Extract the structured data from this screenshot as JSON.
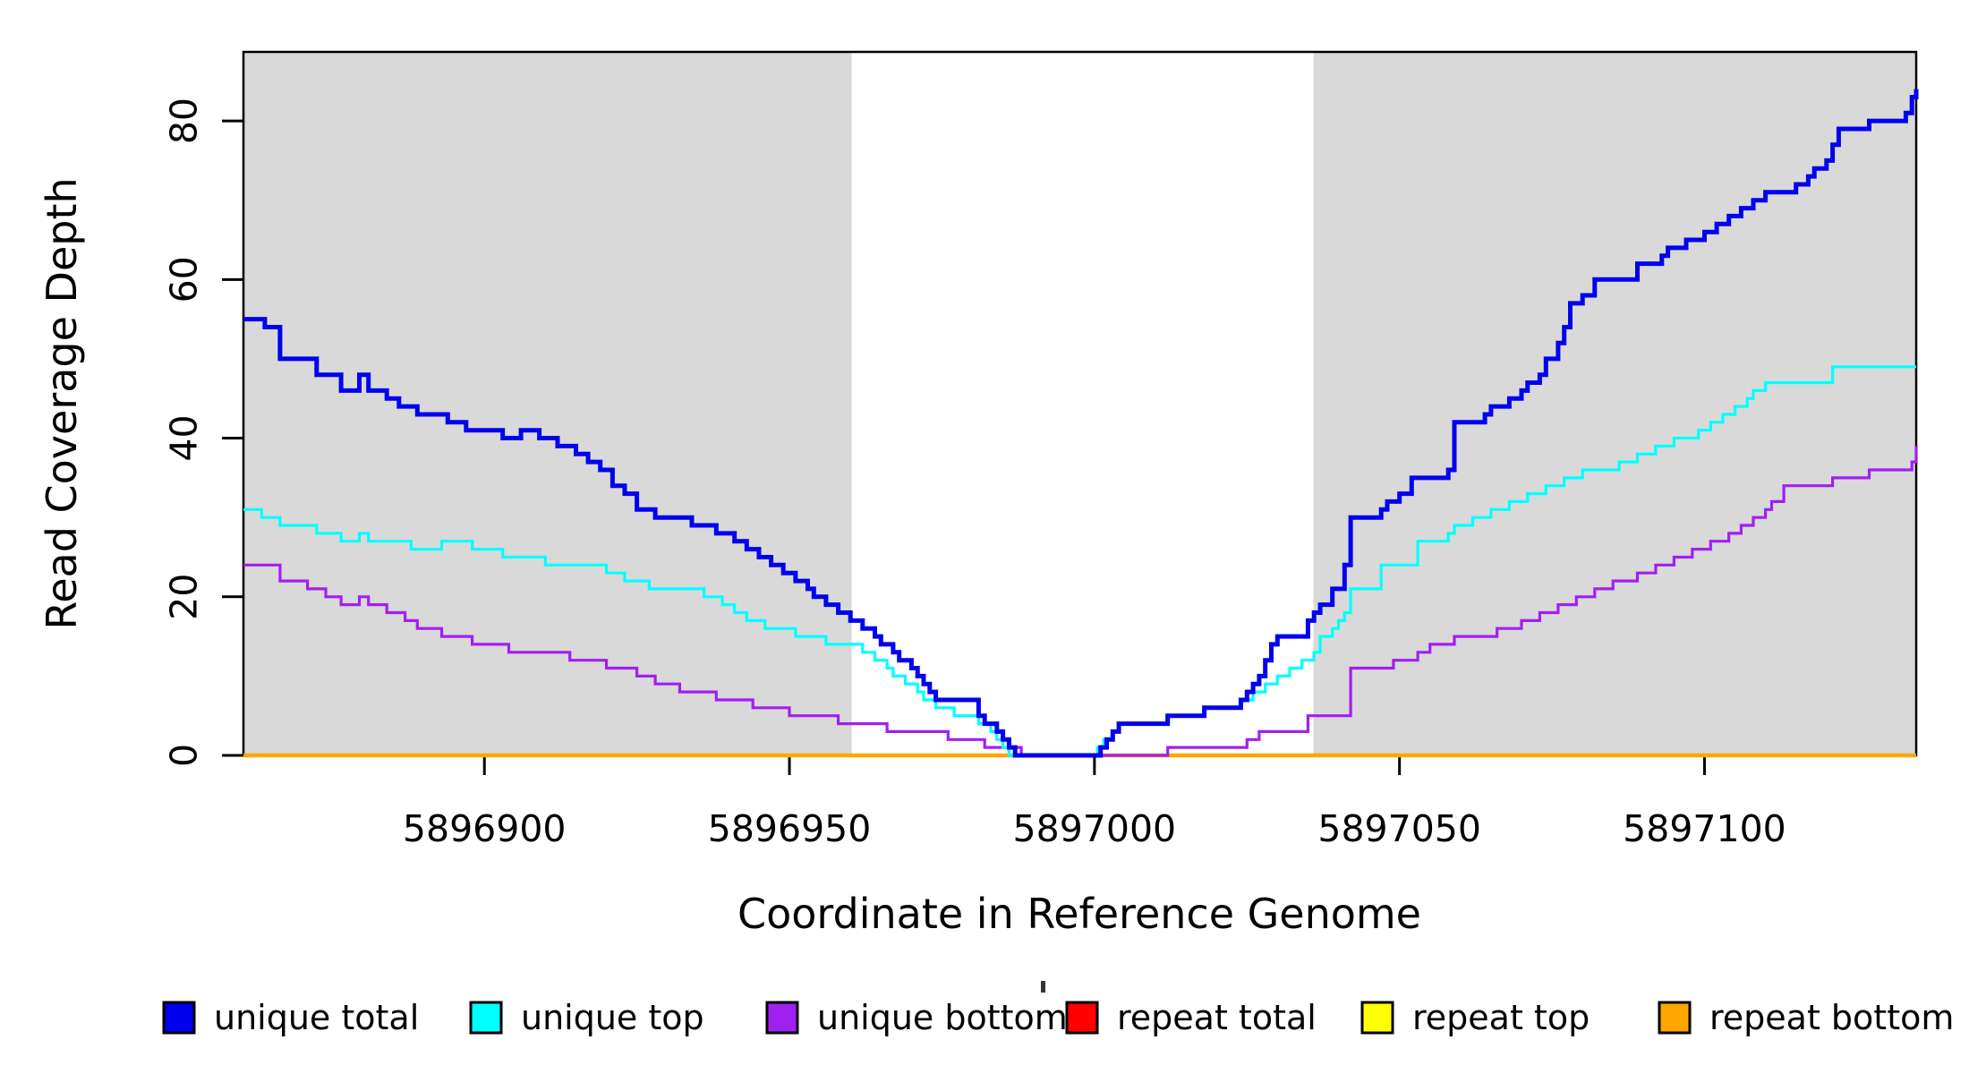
{
  "chart_data": {
    "type": "line",
    "subtype": "step-coverage-plot",
    "title": "",
    "xlabel": "Coordinate in Reference Genome",
    "ylabel": "Read Coverage Depth",
    "grid": false,
    "xlim": [
      5896860.5,
      5897134.7
    ],
    "ylim": [
      0,
      88.7
    ],
    "x_ticks": [
      5896900,
      5896950,
      5897000,
      5897050,
      5897100
    ],
    "x_tick_labels": [
      "5896900",
      "5896950",
      "5897000",
      "5897050",
      "5897100"
    ],
    "y_ticks": [
      0,
      20,
      40,
      60,
      80
    ],
    "y_tick_labels": [
      "0",
      "20",
      "40",
      "60",
      "80"
    ],
    "shading": {
      "color": "#D9D9D9",
      "regions": [
        [
          5896860.5,
          5896960.2
        ],
        [
          5897035.9,
          5897134.7
        ]
      ]
    },
    "legend_position": "bottom",
    "series": [
      {
        "name": "repeat total",
        "color": "#FF0000",
        "width": 3,
        "points": [
          [
            5896860.5,
            0
          ],
          [
            5897134.7,
            0
          ]
        ]
      },
      {
        "name": "repeat top",
        "color": "#FFFF00",
        "width": 3,
        "points": [
          [
            5896860.5,
            0
          ],
          [
            5897134.7,
            0
          ]
        ]
      },
      {
        "name": "repeat bottom",
        "color": "#FFA500",
        "width": 4.5,
        "points": [
          [
            5896860.5,
            0
          ],
          [
            5897134.7,
            0
          ]
        ]
      },
      {
        "name": "unique bottom",
        "color": "#A020F0",
        "width": 3.2,
        "points": [
          [
            5896860.5,
            24
          ],
          [
            5896866.5,
            22
          ],
          [
            5896871,
            21
          ],
          [
            5896874,
            20
          ],
          [
            5896876.5,
            19
          ],
          [
            5896879.5,
            20
          ],
          [
            5896881,
            19
          ],
          [
            5896884,
            18
          ],
          [
            5896887,
            17
          ],
          [
            5896889,
            16
          ],
          [
            5896893,
            15
          ],
          [
            5896898,
            14
          ],
          [
            5896904,
            13
          ],
          [
            5896914,
            12
          ],
          [
            5896920,
            11
          ],
          [
            5896925,
            10
          ],
          [
            5896928,
            9
          ],
          [
            5896932,
            8
          ],
          [
            5896938,
            7
          ],
          [
            5896944,
            6
          ],
          [
            5896950,
            5
          ],
          [
            5896958,
            4
          ],
          [
            5896966,
            3
          ],
          [
            5896976,
            2
          ],
          [
            5896982,
            1
          ],
          [
            5896988,
            0
          ],
          [
            5897012,
            1
          ],
          [
            5897025,
            2
          ],
          [
            5897027,
            3
          ],
          [
            5897035,
            5
          ],
          [
            5897042,
            11
          ],
          [
            5897049,
            12
          ],
          [
            5897053,
            13
          ],
          [
            5897055,
            14
          ],
          [
            5897059,
            15
          ],
          [
            5897066,
            16
          ],
          [
            5897070,
            17
          ],
          [
            5897073,
            18
          ],
          [
            5897076,
            19
          ],
          [
            5897079,
            20
          ],
          [
            5897082,
            21
          ],
          [
            5897085,
            22
          ],
          [
            5897089,
            23
          ],
          [
            5897092,
            24
          ],
          [
            5897095,
            25
          ],
          [
            5897098,
            26
          ],
          [
            5897101,
            27
          ],
          [
            5897104,
            28
          ],
          [
            5897106,
            29
          ],
          [
            5897108,
            30
          ],
          [
            5897110,
            31
          ],
          [
            5897111,
            32
          ],
          [
            5897113,
            34
          ],
          [
            5897121,
            35
          ],
          [
            5897127,
            36
          ],
          [
            5897134,
            37
          ],
          [
            5897134.7,
            39
          ]
        ]
      },
      {
        "name": "unique top",
        "color": "#00FFFF",
        "width": 3.2,
        "points": [
          [
            5896860.5,
            31
          ],
          [
            5896863.5,
            30
          ],
          [
            5896866.5,
            29
          ],
          [
            5896872.5,
            28
          ],
          [
            5896876.5,
            27
          ],
          [
            5896879.5,
            28
          ],
          [
            5896881,
            27
          ],
          [
            5896888,
            26
          ],
          [
            5896893,
            27
          ],
          [
            5896898,
            26
          ],
          [
            5896903,
            25
          ],
          [
            5896910,
            24
          ],
          [
            5896920,
            23
          ],
          [
            5896923,
            22
          ],
          [
            5896927,
            21
          ],
          [
            5896936,
            20
          ],
          [
            5896939,
            19
          ],
          [
            5896941,
            18
          ],
          [
            5896943,
            17
          ],
          [
            5896946,
            16
          ],
          [
            5896951,
            15
          ],
          [
            5896956,
            14
          ],
          [
            5896962,
            13
          ],
          [
            5896964,
            12
          ],
          [
            5896966,
            11
          ],
          [
            5896967,
            10
          ],
          [
            5896969,
            9
          ],
          [
            5896971,
            8
          ],
          [
            5896972,
            7
          ],
          [
            5896974,
            6
          ],
          [
            5896977,
            5
          ],
          [
            5896981,
            4
          ],
          [
            5896983,
            3
          ],
          [
            5896984,
            2
          ],
          [
            5896985,
            1
          ],
          [
            5896986,
            0
          ],
          [
            5897000.5,
            1
          ],
          [
            5897001.5,
            2
          ],
          [
            5897003,
            3
          ],
          [
            5897004,
            4
          ],
          [
            5897012,
            5
          ],
          [
            5897018,
            6
          ],
          [
            5897024,
            7
          ],
          [
            5897026,
            8
          ],
          [
            5897028,
            9
          ],
          [
            5897030,
            10
          ],
          [
            5897032,
            11
          ],
          [
            5897034,
            12
          ],
          [
            5897036,
            13
          ],
          [
            5897037,
            15
          ],
          [
            5897039,
            16
          ],
          [
            5897040,
            17
          ],
          [
            5897041,
            18
          ],
          [
            5897042,
            21
          ],
          [
            5897047,
            24
          ],
          [
            5897053,
            27
          ],
          [
            5897058,
            28
          ],
          [
            5897059,
            29
          ],
          [
            5897062,
            30
          ],
          [
            5897065,
            31
          ],
          [
            5897068,
            32
          ],
          [
            5897071,
            33
          ],
          [
            5897074,
            34
          ],
          [
            5897077,
            35
          ],
          [
            5897080,
            36
          ],
          [
            5897086,
            37
          ],
          [
            5897089,
            38
          ],
          [
            5897092,
            39
          ],
          [
            5897095,
            40
          ],
          [
            5897099,
            41
          ],
          [
            5897101,
            42
          ],
          [
            5897103,
            43
          ],
          [
            5897105,
            44
          ],
          [
            5897107,
            45
          ],
          [
            5897108,
            46
          ],
          [
            5897110,
            47
          ],
          [
            5897121,
            49
          ],
          [
            5897134.7,
            49
          ]
        ]
      },
      {
        "name": "unique total",
        "color": "#0000EE",
        "width": 5,
        "points": [
          [
            5896860.5,
            55
          ],
          [
            5896864,
            54
          ],
          [
            5896866.5,
            50
          ],
          [
            5896872.5,
            48
          ],
          [
            5896876.5,
            46
          ],
          [
            5896879.5,
            48
          ],
          [
            5896881,
            46
          ],
          [
            5896884,
            45
          ],
          [
            5896886,
            44
          ],
          [
            5896889,
            43
          ],
          [
            5896894,
            42
          ],
          [
            5896897,
            41
          ],
          [
            5896903,
            40
          ],
          [
            5896906,
            41
          ],
          [
            5896909,
            40
          ],
          [
            5896912,
            39
          ],
          [
            5896915,
            38
          ],
          [
            5896917,
            37
          ],
          [
            5896919,
            36
          ],
          [
            5896921,
            34
          ],
          [
            5896923,
            33
          ],
          [
            5896925,
            31
          ],
          [
            5896928,
            30
          ],
          [
            5896934,
            29
          ],
          [
            5896938,
            28
          ],
          [
            5896941,
            27
          ],
          [
            5896943,
            26
          ],
          [
            5896945,
            25
          ],
          [
            5896947,
            24
          ],
          [
            5896949,
            23
          ],
          [
            5896951,
            22
          ],
          [
            5896953,
            21
          ],
          [
            5896954,
            20
          ],
          [
            5896956,
            19
          ],
          [
            5896958,
            18
          ],
          [
            5896960,
            17
          ],
          [
            5896962,
            16
          ],
          [
            5896964,
            15
          ],
          [
            5896965,
            14
          ],
          [
            5896967,
            13
          ],
          [
            5896968,
            12
          ],
          [
            5896970,
            11
          ],
          [
            5896971,
            10
          ],
          [
            5896972,
            9
          ],
          [
            5896973,
            8
          ],
          [
            5896974,
            7
          ],
          [
            5896981,
            5
          ],
          [
            5896982,
            4
          ],
          [
            5896984,
            3
          ],
          [
            5896985,
            2
          ],
          [
            5896986,
            1
          ],
          [
            5896987,
            0
          ],
          [
            5897001,
            1
          ],
          [
            5897002,
            2
          ],
          [
            5897003,
            3
          ],
          [
            5897004,
            4
          ],
          [
            5897012,
            5
          ],
          [
            5897018,
            6
          ],
          [
            5897024,
            7
          ],
          [
            5897025,
            8
          ],
          [
            5897026,
            9
          ],
          [
            5897027,
            10
          ],
          [
            5897028,
            12
          ],
          [
            5897029,
            14
          ],
          [
            5897030,
            15
          ],
          [
            5897035,
            17
          ],
          [
            5897036,
            18
          ],
          [
            5897037,
            19
          ],
          [
            5897039,
            21
          ],
          [
            5897041,
            24
          ],
          [
            5897042,
            30
          ],
          [
            5897047,
            31
          ],
          [
            5897048,
            32
          ],
          [
            5897050,
            33
          ],
          [
            5897052,
            35
          ],
          [
            5897058,
            36
          ],
          [
            5897059,
            42
          ],
          [
            5897064,
            43
          ],
          [
            5897065,
            44
          ],
          [
            5897068,
            45
          ],
          [
            5897070,
            46
          ],
          [
            5897071,
            47
          ],
          [
            5897073,
            48
          ],
          [
            5897074,
            50
          ],
          [
            5897076,
            52
          ],
          [
            5897077,
            54
          ],
          [
            5897078,
            57
          ],
          [
            5897080,
            58
          ],
          [
            5897082,
            60
          ],
          [
            5897089,
            62
          ],
          [
            5897093,
            63
          ],
          [
            5897094,
            64
          ],
          [
            5897097,
            65
          ],
          [
            5897100,
            66
          ],
          [
            5897102,
            67
          ],
          [
            5897104,
            68
          ],
          [
            5897106,
            69
          ],
          [
            5897108,
            70
          ],
          [
            5897110,
            71
          ],
          [
            5897115,
            72
          ],
          [
            5897117,
            73
          ],
          [
            5897118,
            74
          ],
          [
            5897120,
            75
          ],
          [
            5897121,
            77
          ],
          [
            5897122,
            79
          ],
          [
            5897127,
            80
          ],
          [
            5897133,
            81
          ],
          [
            5897134,
            83
          ],
          [
            5897134.7,
            84
          ]
        ]
      }
    ],
    "legend": {
      "entries": [
        {
          "label": "unique total",
          "color": "#0000EE"
        },
        {
          "label": "unique top",
          "color": "#00FFFF"
        },
        {
          "label": "unique bottom",
          "color": "#A020F0"
        },
        {
          "label": "repeat total",
          "color": "#FF0000"
        },
        {
          "label": "repeat top",
          "color": "#FFFF00"
        },
        {
          "label": "repeat bottom",
          "color": "#FFA500"
        }
      ],
      "stray_mark": "'"
    }
  }
}
